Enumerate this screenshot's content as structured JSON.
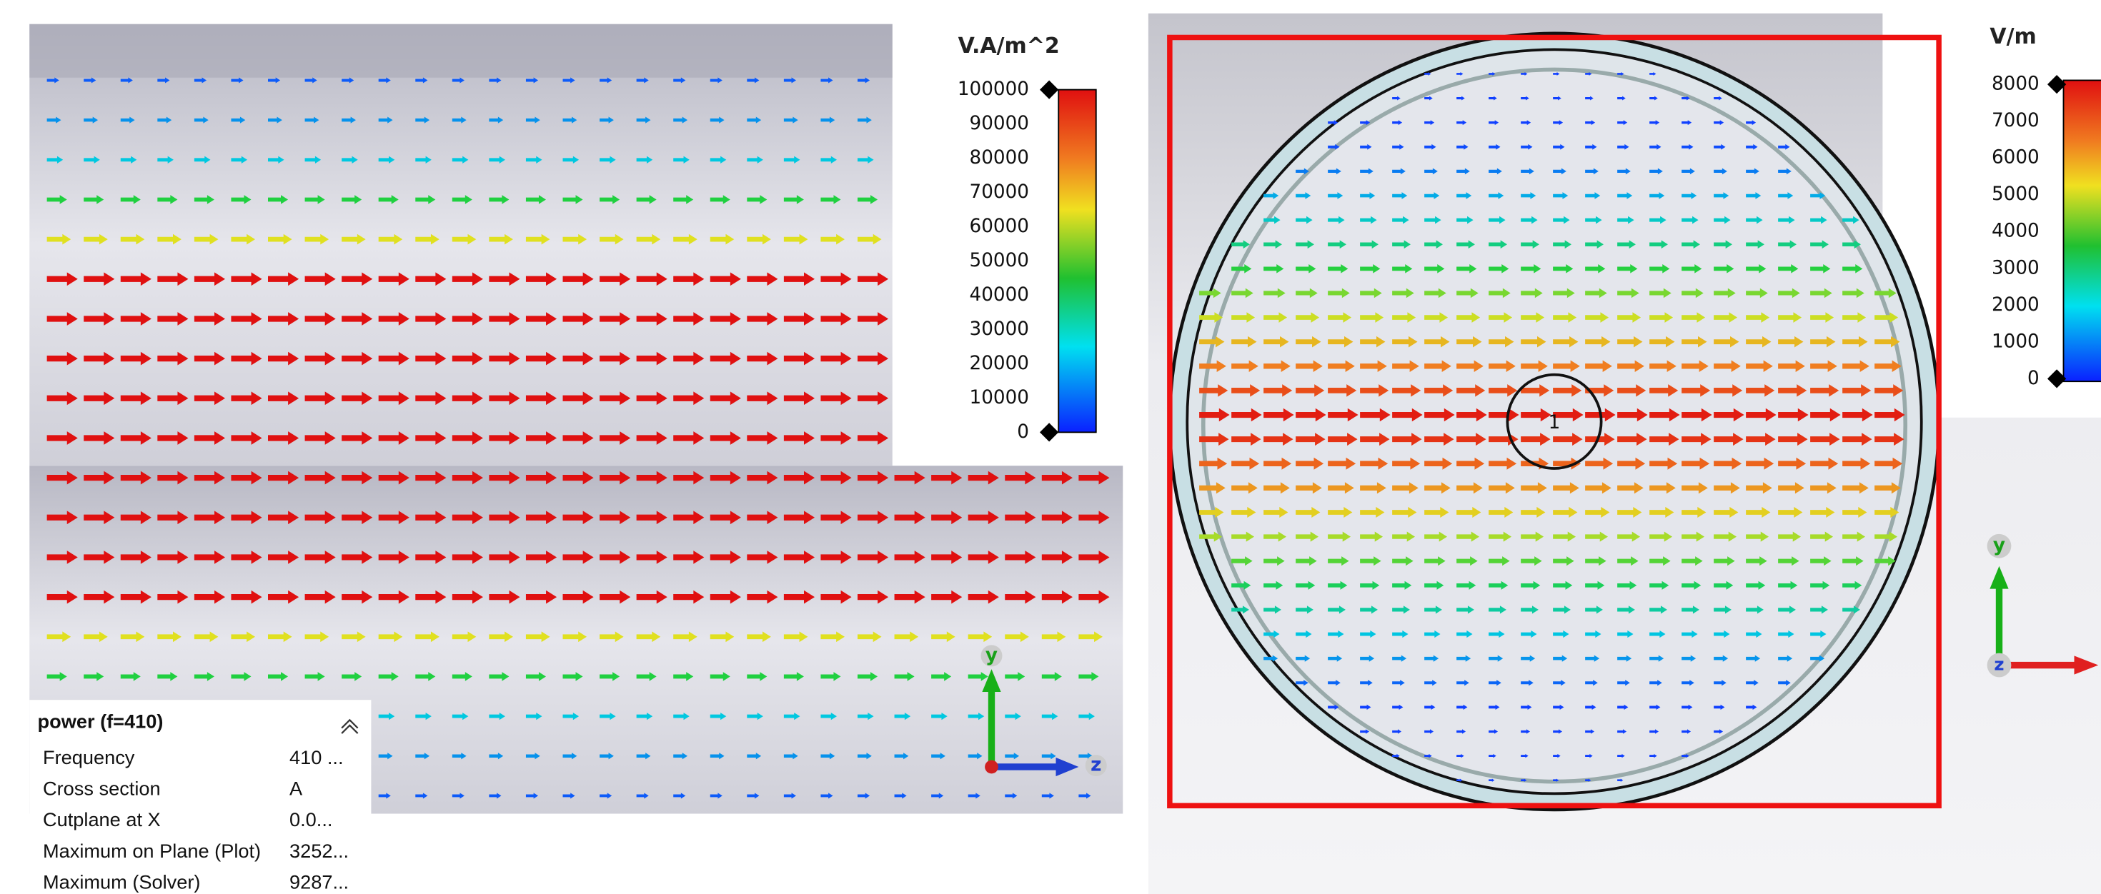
{
  "left_legend": {
    "unit": "V.A/m^2",
    "labels": [
      "100000",
      "90000",
      "80000",
      "70000",
      "60000",
      "50000",
      "40000",
      "30000",
      "20000",
      "10000",
      "0"
    ]
  },
  "right_legend": {
    "unit": "V/m",
    "labels": [
      "8000",
      "7000",
      "6000",
      "5000",
      "4000",
      "3000",
      "2000",
      "1000",
      "0"
    ]
  },
  "info_panel": {
    "title": "power (f=410)",
    "rows": [
      [
        "Frequency",
        "410 ..."
      ],
      [
        "Cross section",
        "A"
      ],
      [
        "Cutplane at X",
        "0.0..."
      ],
      [
        "Maximum on Plane (Plot)",
        "3252..."
      ],
      [
        "Maximum (Solver)",
        "9287..."
      ]
    ]
  },
  "left_axes": {
    "y": "y",
    "z": "z"
  },
  "right_axes": {
    "y": "y",
    "z": "z"
  },
  "port_label": "1"
}
